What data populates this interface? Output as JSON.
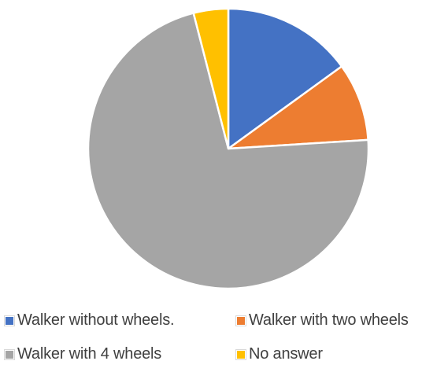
{
  "chart_data": {
    "type": "pie",
    "title": "",
    "start_angle_deg": 0,
    "direction": "clockwise",
    "slices": [
      {
        "label": "Walker without wheels.",
        "value": 15,
        "color": "#4472c4"
      },
      {
        "label": "Walker with two wheels",
        "value": 9,
        "color": "#ed7d31"
      },
      {
        "label": "Walker with 4 wheels",
        "value": 72,
        "color": "#a5a5a5"
      },
      {
        "label": "No answer",
        "value": 4,
        "color": "#ffc000"
      }
    ],
    "legend_position": "bottom"
  }
}
